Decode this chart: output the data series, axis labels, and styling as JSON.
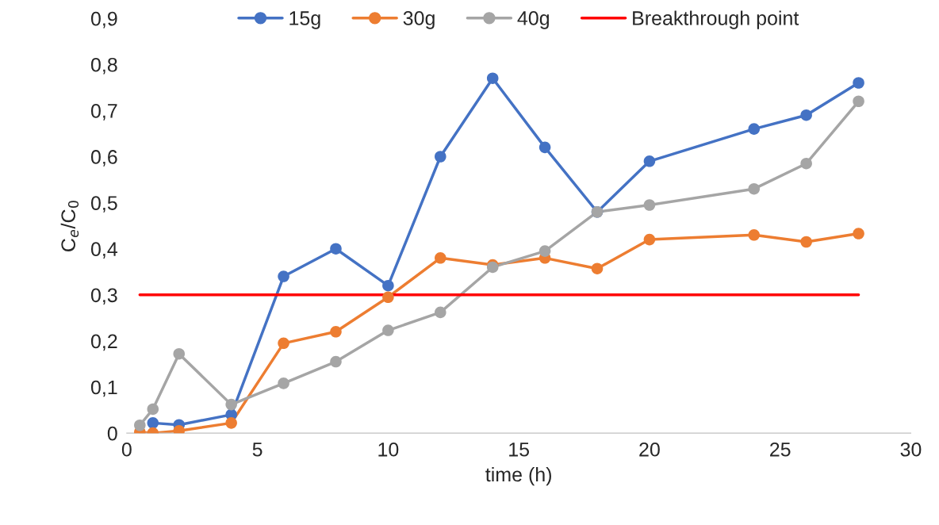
{
  "chart_data": {
    "type": "line",
    "xlabel": "time (h)",
    "ylabel": "C$_{e}$/C$_{0}$",
    "x": [
      0.5,
      1,
      2,
      4,
      6,
      8,
      10,
      12,
      14,
      16,
      18,
      20,
      24,
      26,
      28
    ],
    "series": [
      {
        "name": "15g",
        "color": "#4472c4",
        "values": [
          null,
          0.022,
          0.018,
          0.04,
          0.34,
          0.4,
          0.32,
          0.6,
          0.77,
          0.62,
          0.48,
          0.59,
          0.66,
          0.69,
          0.76
        ]
      },
      {
        "name": "30g",
        "color": "#ed7d31",
        "values": [
          0.002,
          0.0,
          0.005,
          0.022,
          0.195,
          0.22,
          0.295,
          0.38,
          0.365,
          0.38,
          0.357,
          0.42,
          0.43,
          0.415,
          0.433
        ]
      },
      {
        "name": "40g",
        "color": "#a5a5a5",
        "values": [
          0.017,
          0.052,
          0.172,
          0.062,
          0.108,
          0.155,
          0.223,
          0.262,
          0.36,
          0.395,
          0.48,
          0.495,
          0.53,
          0.585,
          0.72
        ]
      },
      {
        "name": "Breakthrough point",
        "color": "#ff0000",
        "type": "line",
        "marker": "none",
        "x": [
          0.5,
          28
        ],
        "values": [
          0.3,
          0.3
        ]
      }
    ],
    "marker": "circle",
    "legend": "top",
    "grid": false,
    "xlim": [
      0,
      30
    ],
    "xticks": [
      0,
      5,
      10,
      15,
      20,
      25,
      30
    ],
    "ylim": [
      0,
      0.9
    ],
    "yticks": [
      {
        "value": 0,
        "label": "0"
      },
      {
        "value": 0.1,
        "label": "0,1"
      },
      {
        "value": 0.2,
        "label": "0,2"
      },
      {
        "value": 0.3,
        "label": "0,3"
      },
      {
        "value": 0.4,
        "label": "0,4"
      },
      {
        "value": 0.5,
        "label": "0,5"
      },
      {
        "value": 0.6,
        "label": "0,6"
      },
      {
        "value": 0.7,
        "label": "0,7"
      },
      {
        "value": 0.8,
        "label": "0,8"
      },
      {
        "value": 0.9,
        "label": "0,9"
      }
    ]
  }
}
